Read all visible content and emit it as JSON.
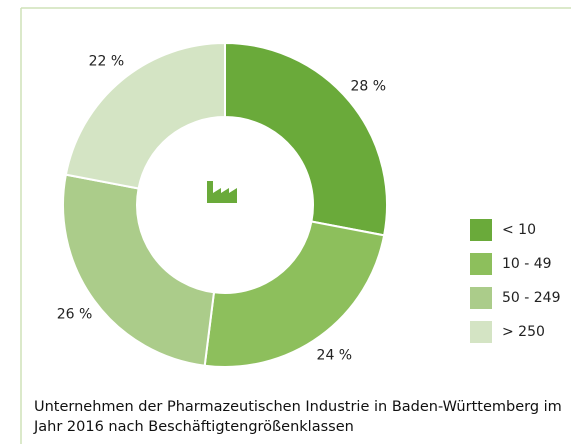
{
  "chart_data": {
    "type": "donut",
    "title": "Unternehmen der Pharmazeutischen Industrie in Baden-Württemberg im Jahr 2016 nach Beschäftigtengrößenklassen",
    "categories": [
      "< 10",
      "10 - 49",
      "50 - 249",
      "> 250"
    ],
    "values": [
      28,
      24,
      26,
      22
    ],
    "value_labels": [
      "28 %",
      "24 %",
      "26 %",
      "22 %"
    ],
    "colors": [
      "#6aaa3a",
      "#8dbf5c",
      "#abcc8a",
      "#d4e4c4"
    ],
    "legend": "right"
  }
}
